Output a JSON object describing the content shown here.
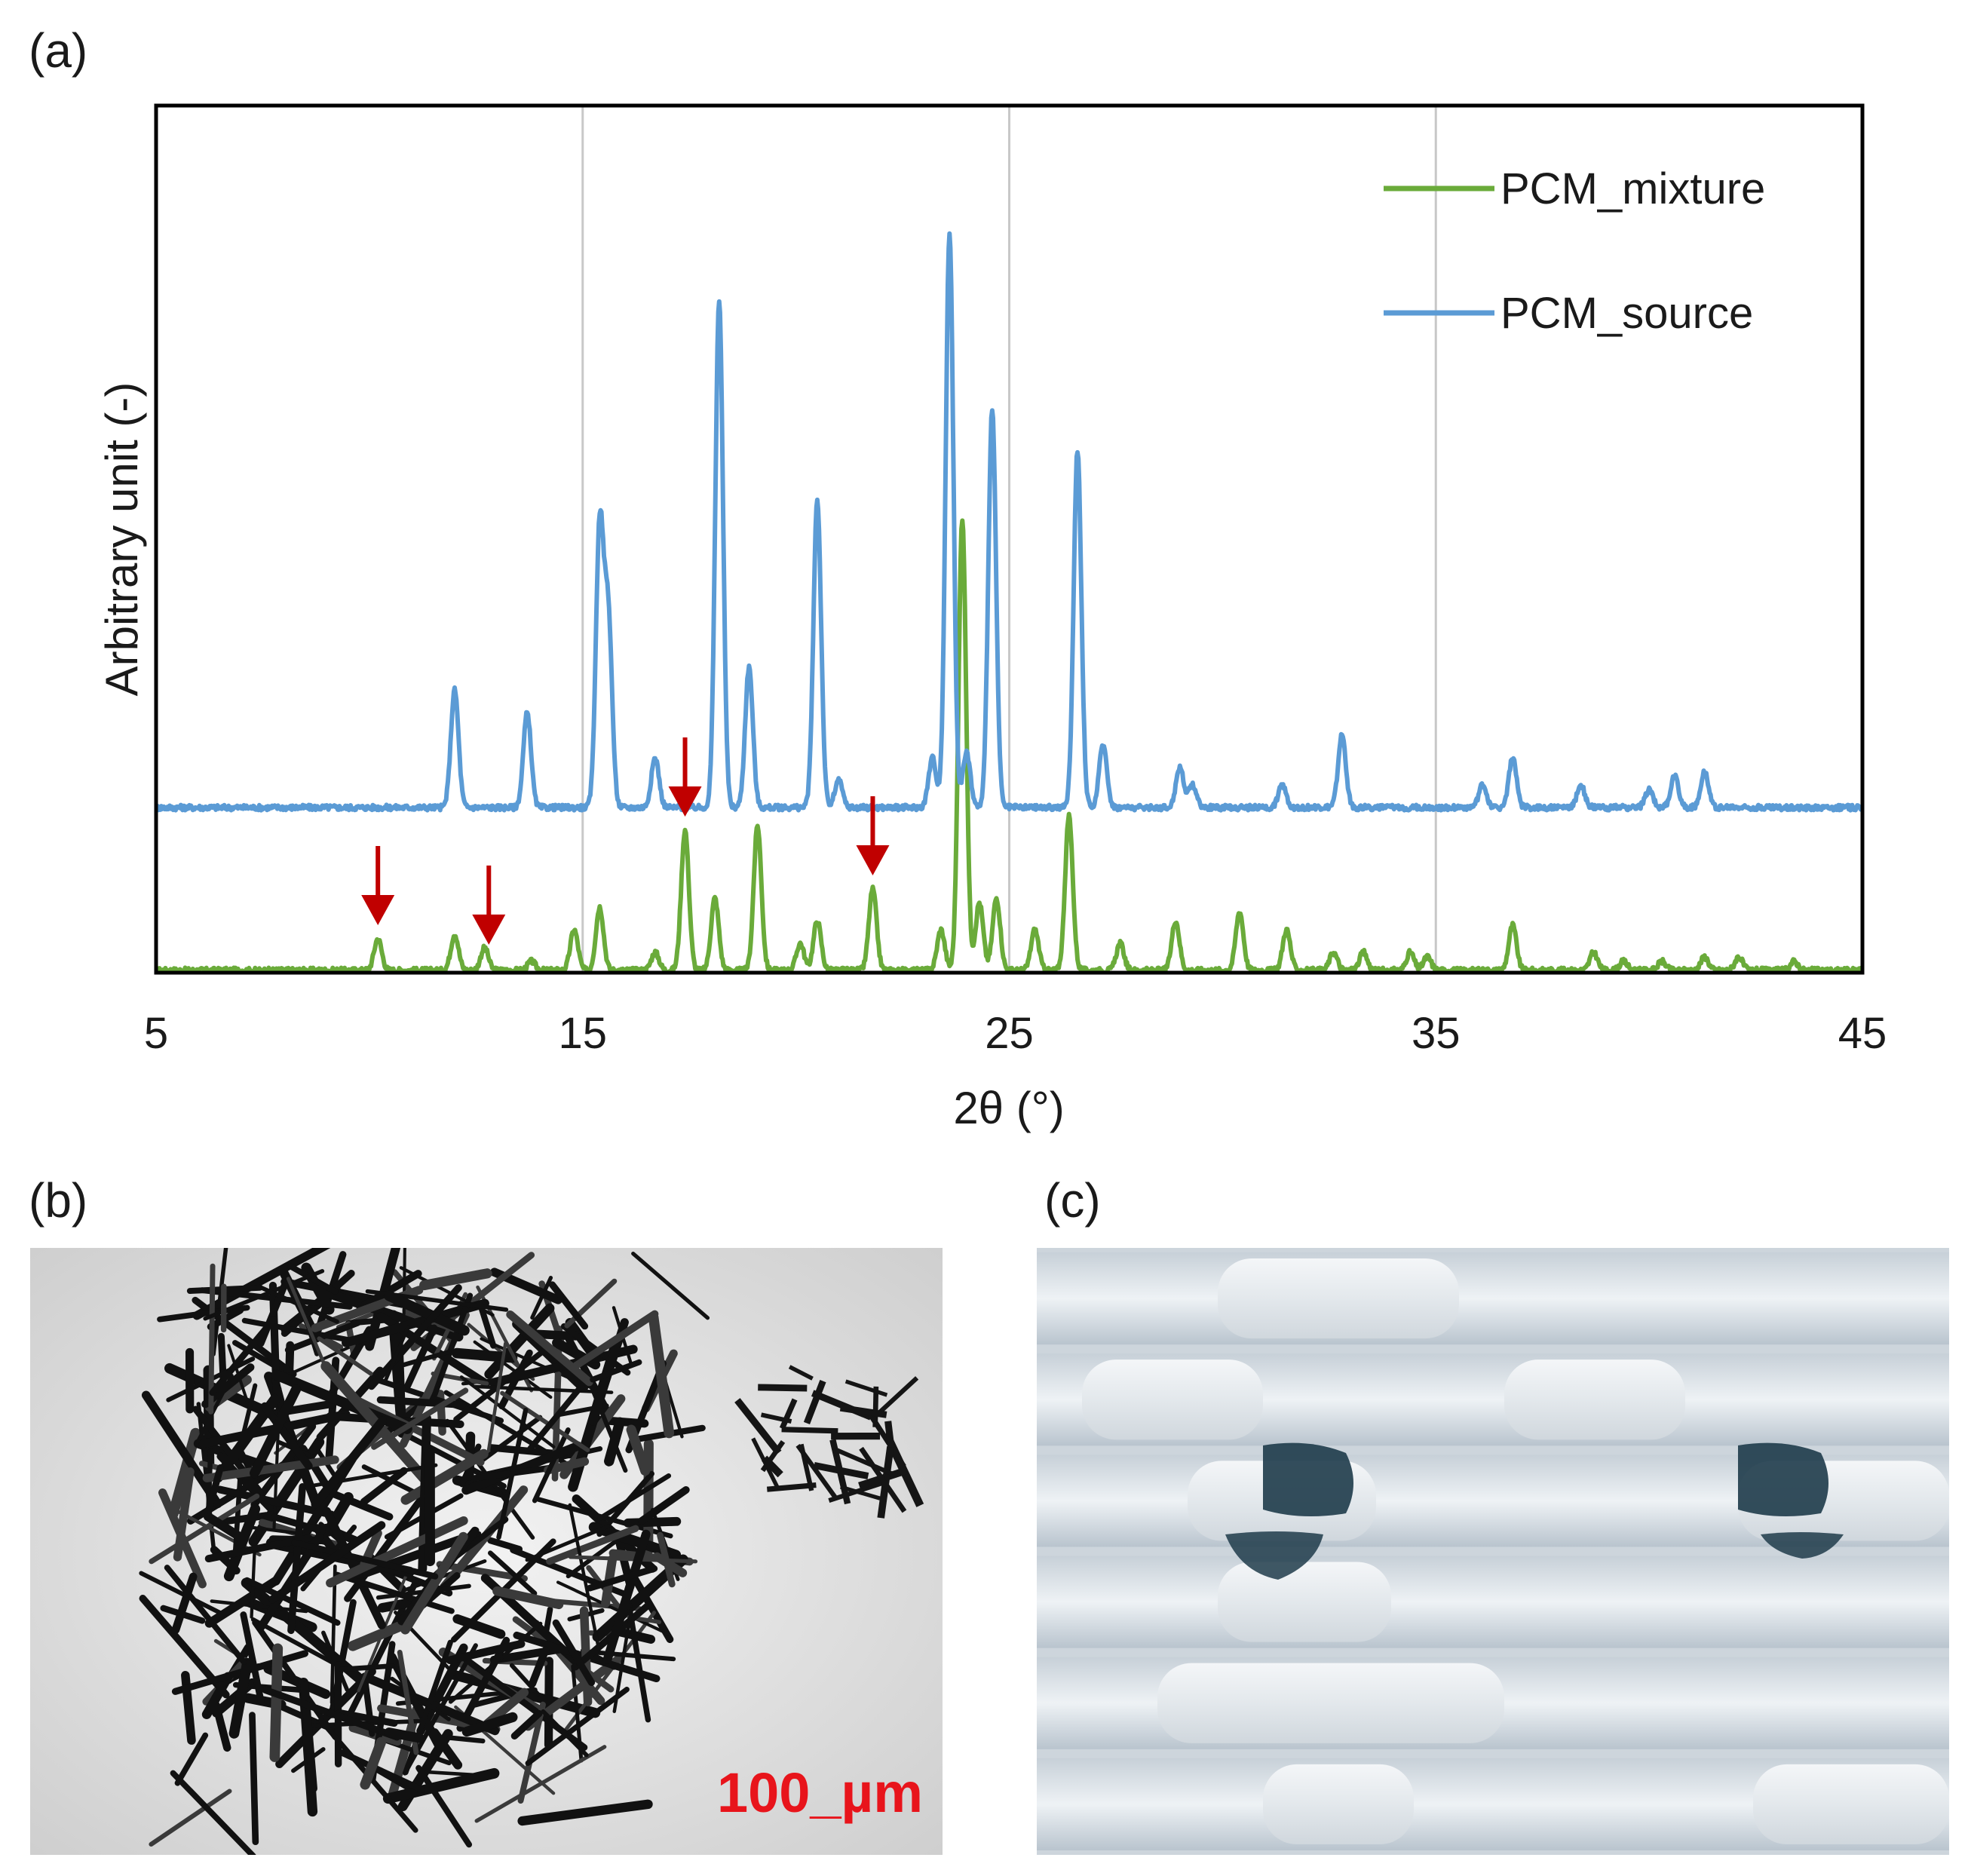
{
  "panels": {
    "a": "(a)",
    "b": "(b)",
    "c": "(c)"
  },
  "scale_bar": "100_µm",
  "chart_data": {
    "type": "line",
    "xlabel": "2θ (°)",
    "ylabel": "Arbitrary unit (-)",
    "xlim": [
      5,
      45
    ],
    "xticks": [
      "5",
      "15",
      "25",
      "35",
      "45"
    ],
    "grid": "vertical",
    "legend_position": "top-right",
    "y_axis_ticks": "none",
    "series": [
      {
        "name": "PCM_mixture",
        "color": "#6aab3a",
        "baseline": 0.0,
        "peaks": [
          [
            10.2,
            0.07
          ],
          [
            12.0,
            0.08
          ],
          [
            12.7,
            0.05
          ],
          [
            13.8,
            0.02
          ],
          [
            14.8,
            0.09
          ],
          [
            15.4,
            0.14
          ],
          [
            16.7,
            0.04
          ],
          [
            17.4,
            0.31
          ],
          [
            18.1,
            0.16
          ],
          [
            19.1,
            0.32
          ],
          [
            20.1,
            0.06
          ],
          [
            20.5,
            0.11
          ],
          [
            21.8,
            0.18
          ],
          [
            23.4,
            0.09
          ],
          [
            23.9,
            1.0
          ],
          [
            24.3,
            0.15
          ],
          [
            24.7,
            0.16
          ],
          [
            25.6,
            0.09
          ],
          [
            26.4,
            0.34
          ],
          [
            27.6,
            0.06
          ],
          [
            28.9,
            0.11
          ],
          [
            30.4,
            0.13
          ],
          [
            31.5,
            0.09
          ],
          [
            32.6,
            0.04
          ],
          [
            33.3,
            0.04
          ],
          [
            34.4,
            0.04
          ],
          [
            34.8,
            0.03
          ],
          [
            36.8,
            0.1
          ],
          [
            38.7,
            0.04
          ],
          [
            39.4,
            0.02
          ],
          [
            40.3,
            0.02
          ],
          [
            41.3,
            0.03
          ],
          [
            42.1,
            0.03
          ],
          [
            43.4,
            0.02
          ]
        ]
      },
      {
        "name": "PCM_source",
        "color": "#5b9bd5",
        "baseline": 0.36,
        "peaks": [
          [
            12.0,
            0.26
          ],
          [
            13.7,
            0.21
          ],
          [
            15.4,
            0.62
          ],
          [
            15.6,
            0.42
          ],
          [
            16.7,
            0.11
          ],
          [
            18.2,
            1.12
          ],
          [
            18.9,
            0.31
          ],
          [
            20.5,
            0.68
          ],
          [
            21.0,
            0.06
          ],
          [
            23.2,
            0.11
          ],
          [
            23.6,
            1.27
          ],
          [
            24.0,
            0.12
          ],
          [
            24.6,
            0.88
          ],
          [
            26.6,
            0.79
          ],
          [
            27.2,
            0.14
          ],
          [
            29.0,
            0.09
          ],
          [
            29.3,
            0.05
          ],
          [
            31.4,
            0.05
          ],
          [
            32.8,
            0.16
          ],
          [
            36.1,
            0.05
          ],
          [
            36.8,
            0.11
          ],
          [
            38.4,
            0.05
          ],
          [
            40.0,
            0.04
          ],
          [
            40.6,
            0.07
          ],
          [
            41.3,
            0.08
          ]
        ]
      }
    ],
    "annotations": [
      {
        "type": "arrow",
        "color": "#c00000",
        "x": 10.2
      },
      {
        "type": "arrow",
        "color": "#c00000",
        "x": 12.8
      },
      {
        "type": "arrow",
        "color": "#c00000",
        "x": 17.4
      },
      {
        "type": "arrow",
        "color": "#c00000",
        "x": 21.8
      }
    ]
  }
}
